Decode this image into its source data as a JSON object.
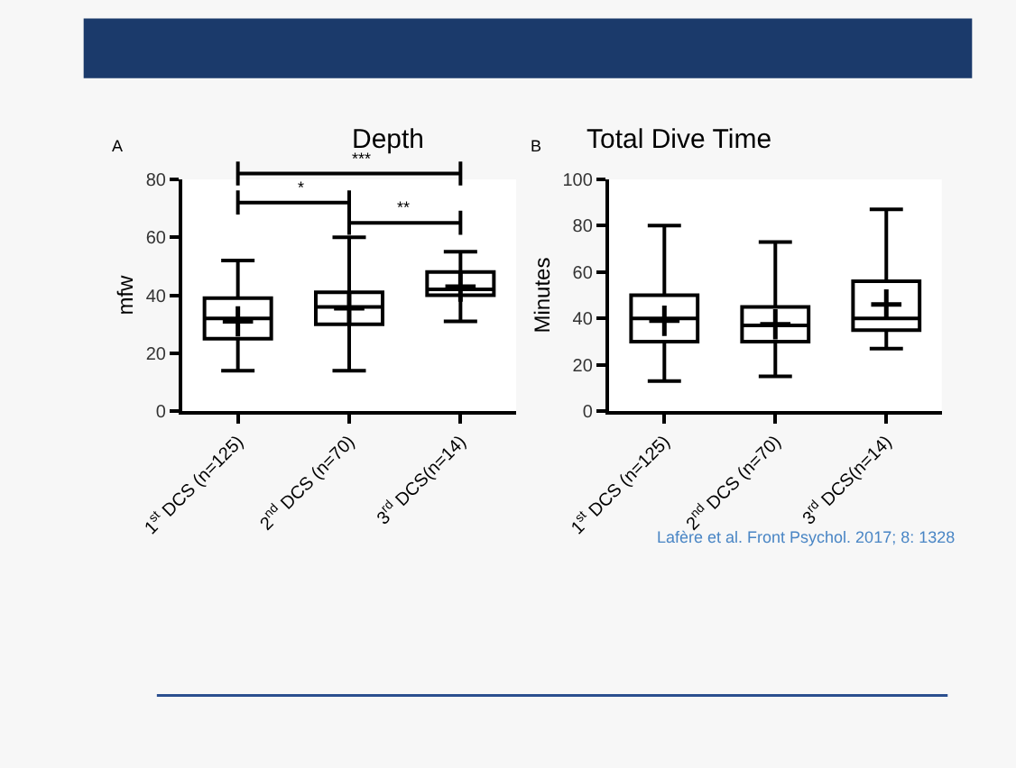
{
  "chart_data": [
    {
      "type": "box",
      "title": "Depth",
      "ylabel": "mfw",
      "categories": [
        "1$^{st}$ DCS (n=125)",
        "2$^{nd}$ DCS (n=70)",
        "3$^{rd}$ DCS(n=14)"
      ],
      "boxes": [
        {
          "low": 14,
          "q1": 25,
          "median": 32,
          "q3": 39,
          "high": 52,
          "mean": 31
        },
        {
          "low": 14,
          "q1": 30,
          "median": 36,
          "q3": 41,
          "high": 60,
          "mean": 35.5
        },
        {
          "low": 31,
          "q1": 40,
          "median": 42,
          "q3": 48,
          "high": 55,
          "mean": 43
        }
      ],
      "ylim": [
        0,
        80
      ],
      "yticks": [
        0,
        20,
        40,
        60,
        80
      ],
      "annotations": [
        "A",
        "***",
        "*",
        "**"
      ]
    },
    {
      "type": "box",
      "title": "Total Dive Time",
      "ylabel": "Minutes",
      "categories": [
        "1$^{st}$ DCS (n=125)",
        "2$^{nd}$ DCS (n=70)",
        "3$^{rd}$ DCS(n=14)"
      ],
      "boxes": [
        {
          "low": 13,
          "q1": 30,
          "median": 40,
          "q3": 50,
          "high": 80,
          "mean": 39
        },
        {
          "low": 15,
          "q1": 30,
          "median": 37,
          "q3": 45,
          "high": 73,
          "mean": 37.5
        },
        {
          "low": 27,
          "q1": 35,
          "median": 40,
          "q3": 56,
          "high": 87,
          "mean": 46
        }
      ],
      "ylim": [
        0,
        100
      ],
      "yticks": [
        0,
        20,
        40,
        60,
        80,
        100
      ],
      "annotations": [
        "B",
        "Lafère et al. Front Psychol. 2017; 8: 1328"
      ]
    }
  ]
}
